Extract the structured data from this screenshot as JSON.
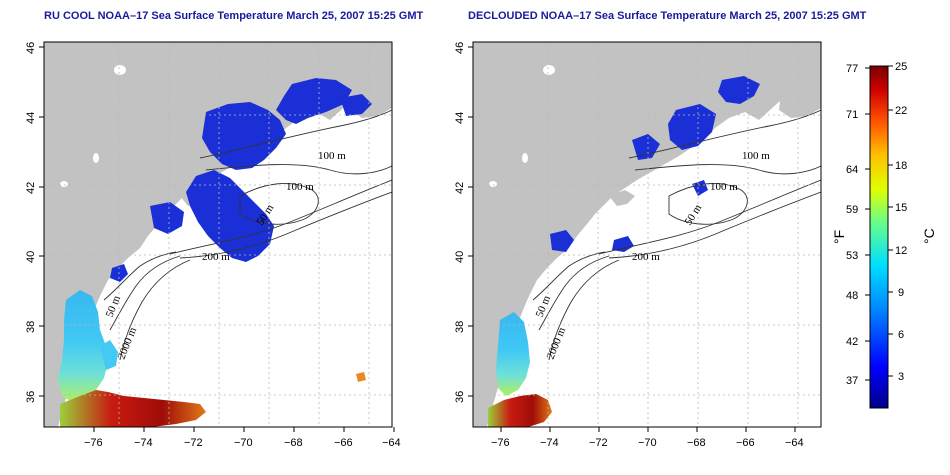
{
  "titles": {
    "left": "RU COOL NOAA–17 Sea Surface Temperature March 25, 2007 15:25 GMT",
    "right": "DECLOUDED NOAA–17 Sea Surface Temperature March 25, 2007 15:25 GMT"
  },
  "axes": {
    "x_ticks": [
      "−76",
      "−74",
      "−72",
      "−70",
      "−68",
      "−66",
      "−64"
    ],
    "y_ticks": [
      "46",
      "44",
      "42",
      "40",
      "38",
      "36"
    ]
  },
  "contours": {
    "left": [
      "100 m",
      "100 m",
      "50 m",
      "200 m",
      "50 m",
      "2000 m"
    ],
    "right": [
      "100 m",
      "100 m",
      "50 m",
      "200 m",
      "50 m",
      "2000 m"
    ]
  },
  "colorbar": {
    "fahrenheit_ticks": [
      "77",
      "71",
      "64",
      "59",
      "53",
      "48",
      "42",
      "37"
    ],
    "celsius_ticks": [
      "25",
      "22",
      "18",
      "15",
      "12",
      "9",
      "6",
      "3"
    ],
    "fahrenheit_label": "°F",
    "celsius_label": "°C",
    "colors": [
      "#00008b",
      "#0000ff",
      "#0070ff",
      "#00d0ff",
      "#50ff90",
      "#d0ff00",
      "#ffd000",
      "#ff6000",
      "#e00000",
      "#800000"
    ]
  },
  "colors": {
    "land": "#c2c2c2",
    "cold": "#1a2fd6",
    "title": "#1a1a9c"
  }
}
